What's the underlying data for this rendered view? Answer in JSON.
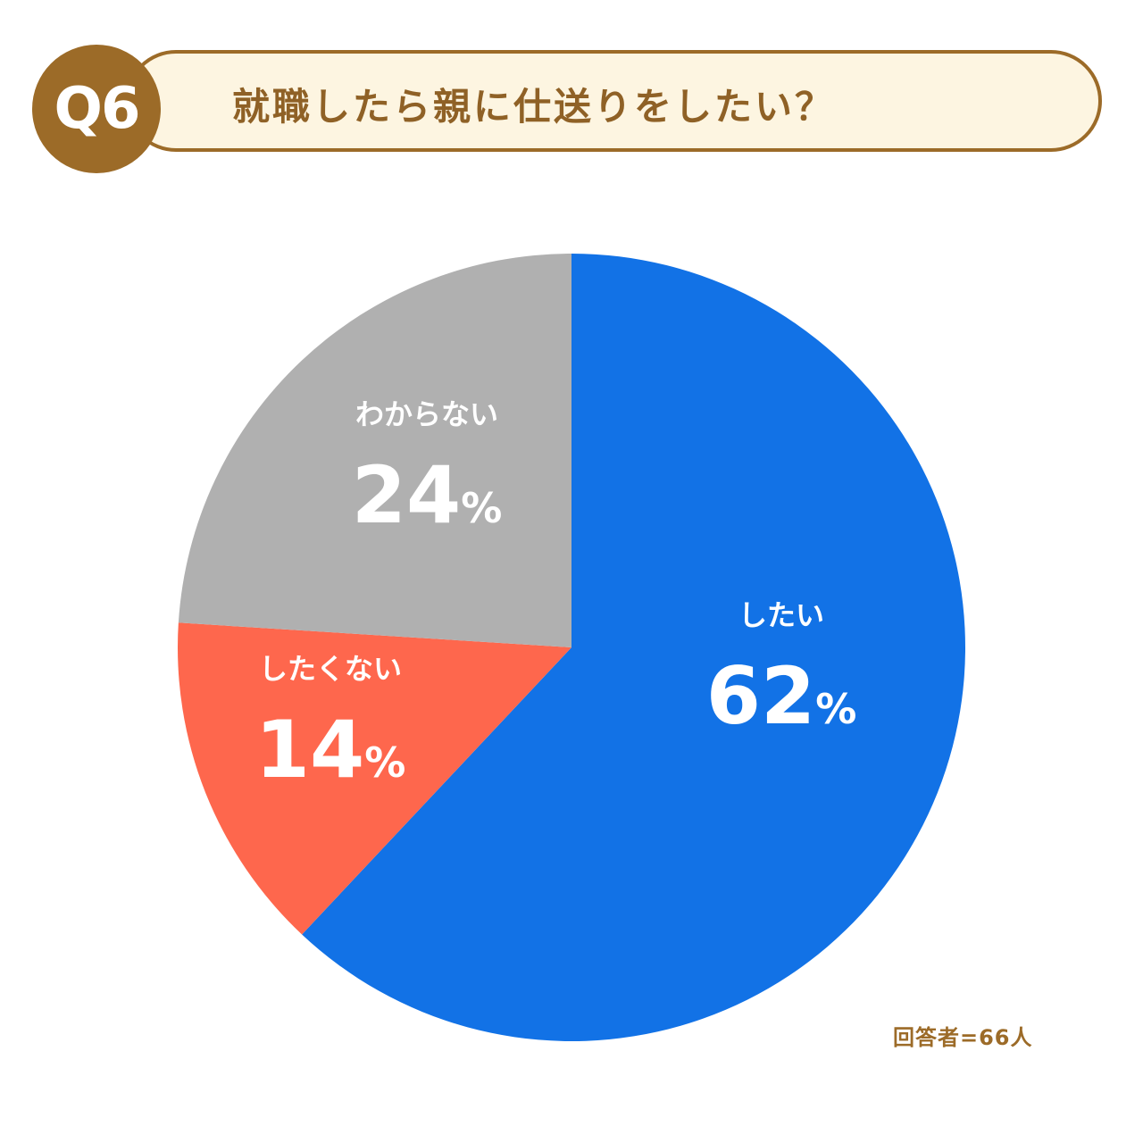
{
  "header": {
    "badge": "Q6",
    "title": "就職したら親に仕送りをしたい？"
  },
  "footer": {
    "respondents": "回答者=66人"
  },
  "chart_data": {
    "type": "pie",
    "title": "就職したら親に仕送りをしたい？",
    "start": "top",
    "direction": "clockwise",
    "slices": [
      {
        "label": "したい",
        "value": 62,
        "display": "62",
        "color": "#1272e6"
      },
      {
        "label": "したくない",
        "value": 14,
        "display": "14",
        "color": "#fe674d"
      },
      {
        "label": "わからない",
        "value": 24,
        "display": "24",
        "color": "#b0b0b0"
      }
    ],
    "unit": "%"
  }
}
